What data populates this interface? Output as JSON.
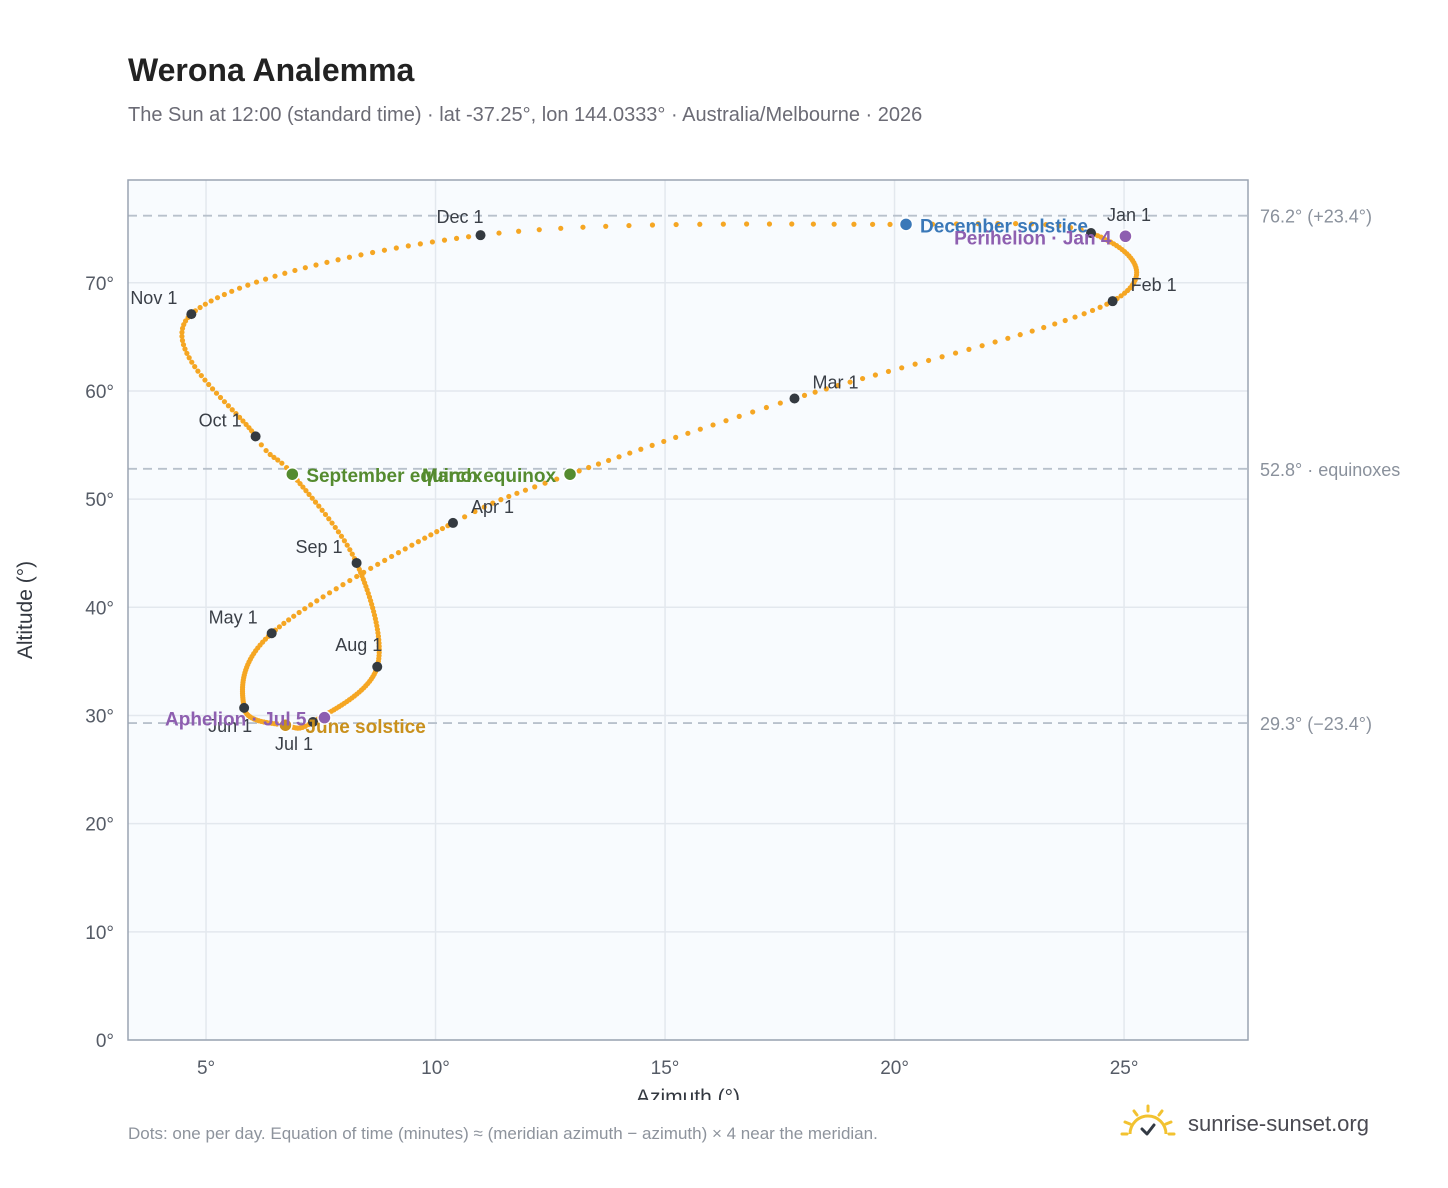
{
  "header": {
    "title": "Werona Analemma",
    "subtitle": "The Sun at 12:00 (standard time) · lat -37.25°, lon 144.0333° · Australia/Melbourne · 2026"
  },
  "footer": {
    "note": "Dots: one per day. Equation of time (minutes) ≈ (meridian azimuth − azimuth) × 4 near the meridian.",
    "brand": "sunrise-sunset.org"
  },
  "colors": {
    "path": "#f5a623",
    "month_marker": "#343a40",
    "equinox": "#558b2f",
    "december_solstice": "#3a78b8",
    "june_solstice": "#c9901c",
    "apsis": "#8e5fb0",
    "plot_bg": "#f8fbfe",
    "grid": "#e3e8ee",
    "frame": "#9aa4b2",
    "reference": "#b8c1cc"
  },
  "chart_data": {
    "type": "scatter",
    "xlabel": "Azimuth (°)",
    "ylabel": "Altitude (°)",
    "xlim": [
      3.3,
      27.7
    ],
    "ylim": [
      0,
      79.5
    ],
    "x_ticks": [
      5,
      10,
      15,
      20,
      25
    ],
    "x_tick_labels": [
      "5°",
      "10°",
      "15°",
      "20°",
      "25°"
    ],
    "y_ticks": [
      0,
      10,
      20,
      30,
      40,
      50,
      60,
      70
    ],
    "y_tick_labels": [
      "0°",
      "10°",
      "20°",
      "30°",
      "40°",
      "50°",
      "60°",
      "70°"
    ],
    "grid": true,
    "reference_lines": [
      {
        "y": 76.2,
        "label": "76.2° (+23.4°)"
      },
      {
        "y": 52.8,
        "label": "52.8° · equinoxes"
      },
      {
        "y": 29.3,
        "label": "29.3° (−23.4°)"
      }
    ],
    "path_knots": [
      {
        "day": 0,
        "x": 24.28,
        "y": 74.6
      },
      {
        "day": 31,
        "x": 24.75,
        "y": 68.3
      },
      {
        "day": 59,
        "x": 17.82,
        "y": 59.3
      },
      {
        "day": 78,
        "x": 12.93,
        "y": 52.3
      },
      {
        "day": 90,
        "x": 10.38,
        "y": 47.8
      },
      {
        "day": 120,
        "x": 6.43,
        "y": 37.6
      },
      {
        "day": 151,
        "x": 5.83,
        "y": 30.7
      },
      {
        "day": 171,
        "x": 6.73,
        "y": 29.1
      },
      {
        "day": 181,
        "x": 7.33,
        "y": 29.4
      },
      {
        "day": 212,
        "x": 8.73,
        "y": 34.5
      },
      {
        "day": 243,
        "x": 8.28,
        "y": 44.1
      },
      {
        "day": 265,
        "x": 6.88,
        "y": 52.3
      },
      {
        "day": 273,
        "x": 6.08,
        "y": 55.8
      },
      {
        "day": 304,
        "x": 4.68,
        "y": 67.1
      },
      {
        "day": 334,
        "x": 10.98,
        "y": 74.4
      },
      {
        "day": 354,
        "x": 20.25,
        "y": 75.4
      },
      {
        "day": 365,
        "x": 24.28,
        "y": 74.6
      }
    ],
    "month_markers": [
      {
        "label": "Jan 1",
        "x": 24.28,
        "y": 74.6
      },
      {
        "label": "Feb 1",
        "x": 24.75,
        "y": 68.3
      },
      {
        "label": "Mar 1",
        "x": 17.82,
        "y": 59.3
      },
      {
        "label": "Apr 1",
        "x": 10.38,
        "y": 47.8
      },
      {
        "label": "May 1",
        "x": 6.43,
        "y": 37.6
      },
      {
        "label": "Jun 1",
        "x": 5.83,
        "y": 30.7
      },
      {
        "label": "Jul 1",
        "x": 7.33,
        "y": 29.4
      },
      {
        "label": "Aug 1",
        "x": 8.73,
        "y": 34.5
      },
      {
        "label": "Sep 1",
        "x": 8.28,
        "y": 44.1
      },
      {
        "label": "Oct 1",
        "x": 6.08,
        "y": 55.8
      },
      {
        "label": "Nov 1",
        "x": 4.68,
        "y": 67.1
      },
      {
        "label": "Dec 1",
        "x": 10.98,
        "y": 74.4
      }
    ],
    "events": [
      {
        "label": "December solstice",
        "x": 20.25,
        "y": 75.4,
        "kind": "december_solstice"
      },
      {
        "label": "Perihelion · Jan 4",
        "x": 25.03,
        "y": 74.3,
        "kind": "apsis"
      },
      {
        "label": "March equinox",
        "x": 12.93,
        "y": 52.3,
        "kind": "equinox"
      },
      {
        "label": "September equinox",
        "x": 6.88,
        "y": 52.3,
        "kind": "equinox"
      },
      {
        "label": "June solstice",
        "x": 6.73,
        "y": 29.1,
        "kind": "june_solstice"
      },
      {
        "label": "Aphelion · Jul 5",
        "x": 7.58,
        "y": 29.8,
        "kind": "apsis"
      }
    ]
  }
}
